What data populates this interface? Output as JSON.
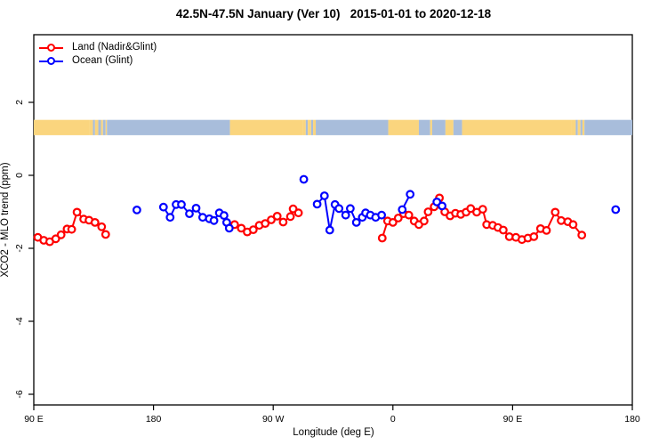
{
  "title": "42.5N-47.5N January (Ver 10)   2015-01-01 to 2020-12-18",
  "axes": {
    "x": {
      "label": "Longitude (deg E)",
      "range_deg": [
        0,
        450
      ],
      "ticks": [
        {
          "deg": 0,
          "label": "90 E"
        },
        {
          "deg": 90,
          "label": "180"
        },
        {
          "deg": 180,
          "label": "90 W"
        },
        {
          "deg": 270,
          "label": "0"
        },
        {
          "deg": 360,
          "label": "90 E"
        },
        {
          "deg": 450,
          "label": "180"
        }
      ]
    },
    "y": {
      "label": "XCO2 - MLO trend (ppm)",
      "range_ppm": [
        -6.3,
        3.85
      ],
      "ticks": [
        {
          "v": 2,
          "label": "2"
        },
        {
          "v": 0,
          "label": "0"
        },
        {
          "v": -2,
          "label": "-2"
        },
        {
          "v": -4,
          "label": "-4"
        },
        {
          "v": -6,
          "label": "-6"
        }
      ]
    }
  },
  "legend": {
    "items": [
      {
        "label": "Land (Nadir&Glint)",
        "color": "#ff0000"
      },
      {
        "label": "Ocean (Glint)",
        "color": "#0000ff"
      }
    ]
  },
  "map_band": {
    "land_color": "#fad57e",
    "ocean_color": "#a8bddb",
    "top_ppm": 1.52,
    "bottom_ppm": 1.1,
    "segments": [
      {
        "type": "land",
        "from": 0,
        "to": 41.5
      },
      {
        "type": "land",
        "from": 41.5,
        "to": 44.5
      },
      {
        "type": "ocean",
        "from": 44.5,
        "to": 46
      },
      {
        "type": "land",
        "from": 46,
        "to": 48.5
      },
      {
        "type": "ocean",
        "from": 48.5,
        "to": 50.5
      },
      {
        "type": "land",
        "from": 50.5,
        "to": 52
      },
      {
        "type": "ocean",
        "from": 52,
        "to": 54
      },
      {
        "type": "land",
        "from": 54,
        "to": 55
      },
      {
        "type": "ocean",
        "from": 55,
        "to": 147.5
      },
      {
        "type": "land",
        "from": 147.5,
        "to": 202
      },
      {
        "type": "land",
        "from": 202,
        "to": 204.5
      },
      {
        "type": "ocean",
        "from": 204.5,
        "to": 206
      },
      {
        "type": "land",
        "from": 206,
        "to": 208.5
      },
      {
        "type": "ocean",
        "from": 208.5,
        "to": 210
      },
      {
        "type": "land",
        "from": 210,
        "to": 212
      },
      {
        "type": "ocean",
        "from": 212,
        "to": 266.5
      },
      {
        "type": "land",
        "from": 266.5,
        "to": 289.5
      },
      {
        "type": "ocean",
        "from": 289.5,
        "to": 298
      },
      {
        "type": "land",
        "from": 298,
        "to": 299.5
      },
      {
        "type": "ocean",
        "from": 299.5,
        "to": 309.5
      },
      {
        "type": "land",
        "from": 309.5,
        "to": 315.5
      },
      {
        "type": "ocean",
        "from": 315.5,
        "to": 322
      },
      {
        "type": "land",
        "from": 322,
        "to": 404.5
      },
      {
        "type": "land",
        "from": 404.5,
        "to": 407.5
      },
      {
        "type": "ocean",
        "from": 407.5,
        "to": 409
      },
      {
        "type": "land",
        "from": 409,
        "to": 411
      },
      {
        "type": "ocean",
        "from": 411,
        "to": 412.5
      },
      {
        "type": "land",
        "from": 412.5,
        "to": 414
      },
      {
        "type": "ocean",
        "from": 414,
        "to": 450
      }
    ]
  },
  "chart_data": {
    "type": "line",
    "x_axis_note": "degrees east of 90E along wrapped axis 90E->180->90W->0->90E->180",
    "xlabel": "Longitude (deg E)",
    "ylabel": "XCO2 - MLO trend (ppm)",
    "ylim": [
      -6.3,
      3.85
    ],
    "series": [
      {
        "name": "Land (Nadir&Glint)",
        "color": "#ff0000",
        "segments": [
          [
            [
              3,
              -1.7
            ],
            [
              7.5,
              -1.78
            ],
            [
              12,
              -1.82
            ],
            [
              16.5,
              -1.74
            ],
            [
              20.5,
              -1.63
            ],
            [
              25,
              -1.47
            ],
            [
              28.5,
              -1.48
            ],
            [
              32.5,
              -1.01
            ],
            [
              37.5,
              -1.2
            ],
            [
              41.5,
              -1.23
            ],
            [
              46,
              -1.29
            ],
            [
              51,
              -1.41
            ],
            [
              54,
              -1.62
            ]
          ],
          [
            [
              151,
              -1.35
            ],
            [
              156,
              -1.45
            ],
            [
              160.5,
              -1.55
            ],
            [
              165,
              -1.49
            ],
            [
              169.5,
              -1.37
            ],
            [
              174,
              -1.32
            ],
            [
              178.5,
              -1.22
            ],
            [
              183,
              -1.12
            ],
            [
              187.5,
              -1.28
            ],
            [
              193,
              -1.13
            ],
            [
              195,
              -0.92
            ],
            [
              199,
              -1.03
            ]
          ],
          [
            [
              262,
              -1.72
            ],
            [
              266,
              -1.25
            ],
            [
              270,
              -1.29
            ],
            [
              274,
              -1.17
            ],
            [
              278,
              -1.05
            ],
            [
              282,
              -1.09
            ],
            [
              286,
              -1.25
            ],
            [
              289.5,
              -1.35
            ],
            [
              293.5,
              -1.25
            ],
            [
              296.5,
              -1.0
            ],
            [
              301,
              -0.86
            ],
            [
              305,
              -0.62
            ],
            [
              309,
              -1.0
            ],
            [
              313,
              -1.11
            ],
            [
              317,
              -1.04
            ],
            [
              321,
              -1.07
            ],
            [
              325,
              -1.01
            ],
            [
              328.5,
              -0.91
            ],
            [
              333,
              -1.01
            ],
            [
              337.5,
              -0.93
            ],
            [
              340.5,
              -1.35
            ],
            [
              345,
              -1.37
            ],
            [
              349,
              -1.43
            ],
            [
              353,
              -1.5
            ],
            [
              357.5,
              -1.68
            ],
            [
              362.5,
              -1.7
            ],
            [
              367,
              -1.76
            ],
            [
              371.5,
              -1.72
            ],
            [
              376,
              -1.68
            ],
            [
              381,
              -1.46
            ],
            [
              385.5,
              -1.51
            ],
            [
              392,
              -1.01
            ],
            [
              396.5,
              -1.24
            ],
            [
              401.5,
              -1.27
            ],
            [
              405.5,
              -1.35
            ],
            [
              412,
              -1.64
            ]
          ]
        ]
      },
      {
        "name": "Ocean (Glint)",
        "color": "#0000ff",
        "segments": [
          [
            [
              77.5,
              -0.95
            ]
          ],
          [
            [
              97.5,
              -0.87
            ],
            [
              102.5,
              -1.15
            ],
            [
              107,
              -0.8
            ],
            [
              111,
              -0.8
            ],
            [
              117,
              -1.05
            ],
            [
              122,
              -0.9
            ],
            [
              127,
              -1.15
            ],
            [
              132,
              -1.19
            ],
            [
              135.5,
              -1.24
            ],
            [
              139.5,
              -1.03
            ],
            [
              143,
              -1.1
            ],
            [
              145,
              -1.29
            ],
            [
              147,
              -1.45
            ]
          ],
          [
            [
              203,
              -0.11
            ]
          ],
          [
            [
              213,
              -0.79
            ],
            [
              218.5,
              -0.56
            ],
            [
              222.5,
              -1.5
            ],
            [
              226.5,
              -0.8
            ],
            [
              229.5,
              -0.91
            ],
            [
              234.5,
              -1.09
            ],
            [
              238,
              -0.91
            ],
            [
              242.5,
              -1.29
            ],
            [
              247,
              -1.15
            ],
            [
              249.5,
              -1.03
            ],
            [
              253,
              -1.09
            ],
            [
              257,
              -1.15
            ],
            [
              261.5,
              -1.09
            ]
          ],
          [
            [
              277,
              -0.94
            ],
            [
              283,
              -0.52
            ]
          ],
          [
            [
              303,
              -0.73
            ],
            [
              307,
              -0.84
            ]
          ],
          [
            [
              437.5,
              -0.94
            ]
          ]
        ]
      }
    ]
  }
}
